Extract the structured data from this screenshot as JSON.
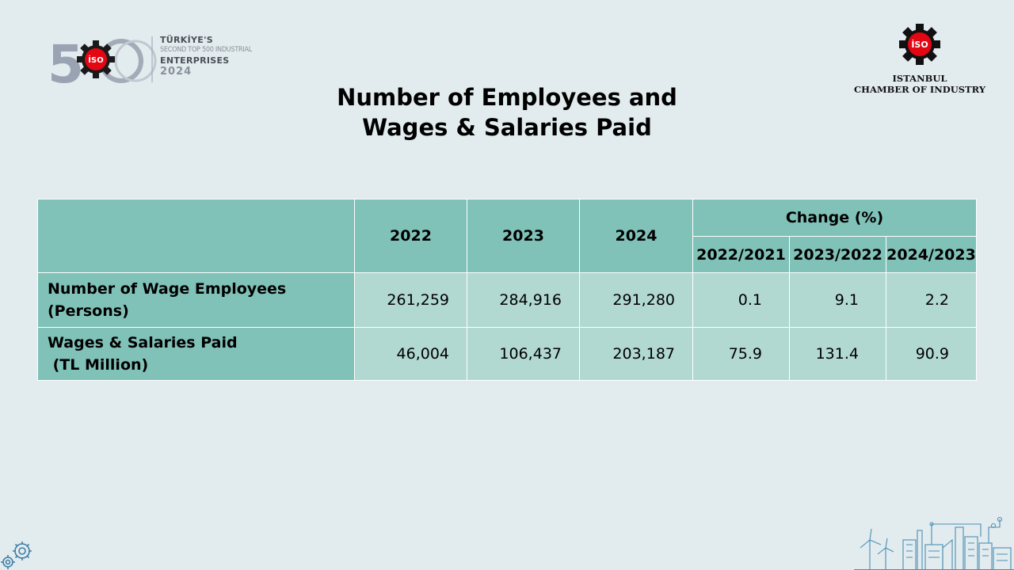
{
  "logo_left": {
    "number": "500",
    "line1": "TÜRKİYE'S",
    "line2": "SECOND TOP 500 INDUSTRIAL",
    "line3": "ENTERPRISES",
    "year": "2024",
    "badge": "İSO"
  },
  "logo_right": {
    "badge": "İSO",
    "name_line1": "ISTANBUL",
    "name_line2": "CHAMBER OF INDUSTRY"
  },
  "title": {
    "line1": "Number of Employees and",
    "line2": "Wages & Salaries Paid"
  },
  "table": {
    "header": {
      "years": [
        "2022",
        "2023",
        "2024"
      ],
      "change_label": "Change (%)",
      "change_periods": [
        "2022/2021",
        "2023/2022",
        "2024/2023"
      ]
    },
    "rows": [
      {
        "label_line1": "Number of Wage Employees",
        "label_line2": "(Persons)",
        "values": [
          "261,259",
          "284,916",
          "291,280"
        ],
        "changes": [
          "0.1",
          "9.1",
          "2.2"
        ]
      },
      {
        "label_line1": "Wages & Salaries Paid",
        "label_line2": " (TL Million)",
        "values": [
          "46,004",
          "106,437",
          "203,187"
        ],
        "changes": [
          "75.9",
          "131.4",
          "90.9"
        ]
      }
    ]
  },
  "colors": {
    "background": "#e2ebee",
    "header_fill": "#80c1b8",
    "cell_fill": "#b2d8d2",
    "badge_red": "#e30613"
  }
}
